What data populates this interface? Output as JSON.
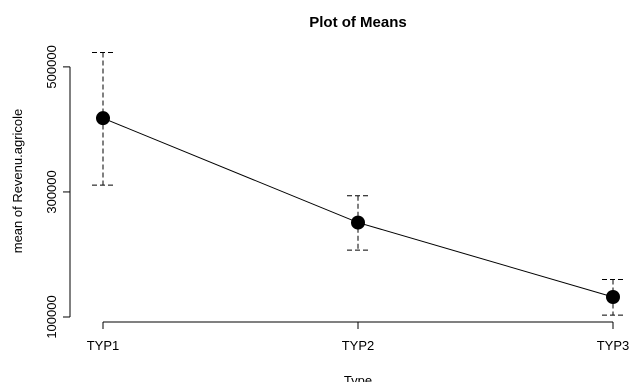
{
  "chart_data": {
    "type": "line",
    "title": "Plot of Means",
    "xlabel": "Type",
    "ylabel": "mean of Revenu.agricole",
    "categories": [
      "TYP1",
      "TYP2",
      "TYP3"
    ],
    "series": [
      {
        "values": [
          418000,
          251000,
          132000
        ],
        "error_low": [
          311000,
          207000,
          103000
        ],
        "error_high": [
          523000,
          294000,
          160000
        ]
      }
    ],
    "y_ticks": [
      100000,
      300000,
      500000
    ],
    "y_tick_labels": [
      "100000",
      "300000",
      "500000"
    ],
    "ylim": [
      92000,
      535000
    ],
    "grid": false,
    "error_bars": "dashed"
  }
}
